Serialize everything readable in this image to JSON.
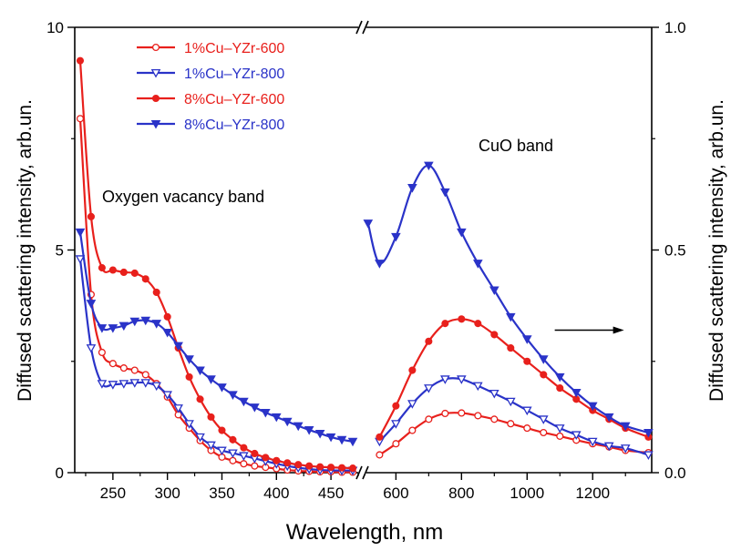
{
  "chart_data": {
    "type": "line",
    "xlabel": "Wavelength, nm",
    "ylabel_left": "Diffused scattering intensity, arb.un.",
    "ylabel_right": "Diffused scattering intensity, arb.un.",
    "left_panel": {
      "xlim": [
        215,
        475
      ],
      "ylim": [
        0,
        10
      ],
      "x_ticks": [
        250,
        300,
        350,
        400,
        450
      ],
      "y_ticks": [
        0,
        5,
        10
      ]
    },
    "right_panel": {
      "xlim": [
        510,
        1380
      ],
      "ylim": [
        0,
        1.0
      ],
      "x_ticks": [
        600,
        800,
        1000,
        1200
      ],
      "y_ticks": [
        0.0,
        0.5,
        1.0
      ]
    },
    "y_tick_labels_left": [
      "0",
      "5",
      "10"
    ],
    "y_tick_labels_right": [
      "0.0",
      "0.5",
      "1.0"
    ],
    "annotations": [
      "Oxygen vacancy band",
      "CuO band"
    ],
    "arrow": {
      "direction": "right",
      "x": 1240,
      "y": 0.32
    },
    "legend_position": "top-left",
    "series": [
      {
        "name": "1%Cu–YZr-600",
        "color": "#e8201c",
        "marker": "circle-open",
        "left": {
          "x": [
            220,
            230,
            240,
            250,
            260,
            270,
            280,
            290,
            300,
            310,
            320,
            330,
            340,
            350,
            360,
            370,
            380,
            390,
            400,
            410,
            420,
            430,
            440,
            450,
            460,
            470
          ],
          "y": [
            7.95,
            4.0,
            2.7,
            2.45,
            2.35,
            2.3,
            2.2,
            2.0,
            1.7,
            1.3,
            1.0,
            0.72,
            0.5,
            0.35,
            0.27,
            0.2,
            0.15,
            0.12,
            0.09,
            0.06,
            0.04,
            0.03,
            0.02,
            0.02,
            0.01,
            0.01
          ]
        },
        "right": {
          "x": [
            550,
            600,
            650,
            700,
            750,
            800,
            850,
            900,
            950,
            1000,
            1050,
            1100,
            1150,
            1200,
            1250,
            1300,
            1370
          ],
          "y": [
            0.04,
            0.065,
            0.095,
            0.12,
            0.133,
            0.134,
            0.128,
            0.12,
            0.11,
            0.1,
            0.09,
            0.082,
            0.073,
            0.065,
            0.058,
            0.05,
            0.045
          ]
        }
      },
      {
        "name": "1%Cu–YZr-800",
        "color": "#2a33c8",
        "marker": "triangle-down-open",
        "left": {
          "x": [
            220,
            230,
            240,
            250,
            260,
            270,
            280,
            290,
            300,
            310,
            320,
            330,
            340,
            350,
            360,
            370,
            380,
            390,
            400,
            410,
            420,
            430,
            440,
            450,
            460,
            470
          ],
          "y": [
            4.8,
            2.8,
            2.0,
            1.98,
            2.0,
            2.02,
            2.02,
            1.95,
            1.75,
            1.45,
            1.1,
            0.8,
            0.62,
            0.5,
            0.44,
            0.38,
            0.32,
            0.26,
            0.2,
            0.15,
            0.11,
            0.08,
            0.06,
            0.05,
            0.05,
            0.05
          ]
        },
        "right": {
          "x": [
            550,
            600,
            650,
            700,
            750,
            800,
            850,
            900,
            950,
            1000,
            1050,
            1100,
            1150,
            1200,
            1250,
            1300,
            1370
          ],
          "y": [
            0.07,
            0.11,
            0.155,
            0.19,
            0.21,
            0.21,
            0.195,
            0.178,
            0.16,
            0.14,
            0.12,
            0.1,
            0.085,
            0.07,
            0.06,
            0.055,
            0.04
          ]
        }
      },
      {
        "name": "8%Cu–YZr-600",
        "color": "#e8201c",
        "marker": "circle-filled",
        "left": {
          "x": [
            220,
            230,
            240,
            250,
            260,
            270,
            280,
            290,
            300,
            310,
            320,
            330,
            340,
            350,
            360,
            370,
            380,
            390,
            400,
            410,
            420,
            430,
            440,
            450,
            460,
            470
          ],
          "y": [
            9.25,
            5.75,
            4.6,
            4.55,
            4.5,
            4.48,
            4.35,
            4.05,
            3.5,
            2.8,
            2.15,
            1.65,
            1.25,
            0.95,
            0.74,
            0.56,
            0.43,
            0.34,
            0.27,
            0.22,
            0.18,
            0.15,
            0.13,
            0.12,
            0.11,
            0.1
          ]
        },
        "right": {
          "x": [
            550,
            600,
            650,
            700,
            750,
            800,
            850,
            900,
            950,
            1000,
            1050,
            1100,
            1150,
            1200,
            1250,
            1300,
            1370
          ],
          "y": [
            0.08,
            0.15,
            0.23,
            0.295,
            0.335,
            0.345,
            0.335,
            0.31,
            0.28,
            0.25,
            0.22,
            0.19,
            0.165,
            0.14,
            0.12,
            0.1,
            0.08
          ]
        }
      },
      {
        "name": "8%Cu–YZr-800",
        "color": "#2a33c8",
        "marker": "triangle-down-filled",
        "left": {
          "x": [
            220,
            230,
            240,
            250,
            260,
            270,
            280,
            290,
            300,
            310,
            320,
            330,
            340,
            350,
            360,
            370,
            380,
            390,
            400,
            410,
            420,
            430,
            440,
            450,
            460,
            470
          ],
          "y": [
            5.4,
            3.8,
            3.25,
            3.25,
            3.3,
            3.4,
            3.42,
            3.35,
            3.15,
            2.85,
            2.55,
            2.3,
            2.1,
            1.92,
            1.75,
            1.6,
            1.47,
            1.35,
            1.25,
            1.15,
            1.05,
            0.96,
            0.88,
            0.8,
            0.74,
            0.7
          ]
        },
        "right": {
          "x": [
            515,
            550,
            600,
            650,
            700,
            750,
            800,
            850,
            900,
            950,
            1000,
            1050,
            1100,
            1150,
            1200,
            1250,
            1300,
            1370
          ],
          "y": [
            0.56,
            0.47,
            0.53,
            0.64,
            0.69,
            0.63,
            0.54,
            0.47,
            0.41,
            0.35,
            0.3,
            0.255,
            0.215,
            0.18,
            0.15,
            0.125,
            0.105,
            0.09
          ]
        }
      }
    ]
  }
}
